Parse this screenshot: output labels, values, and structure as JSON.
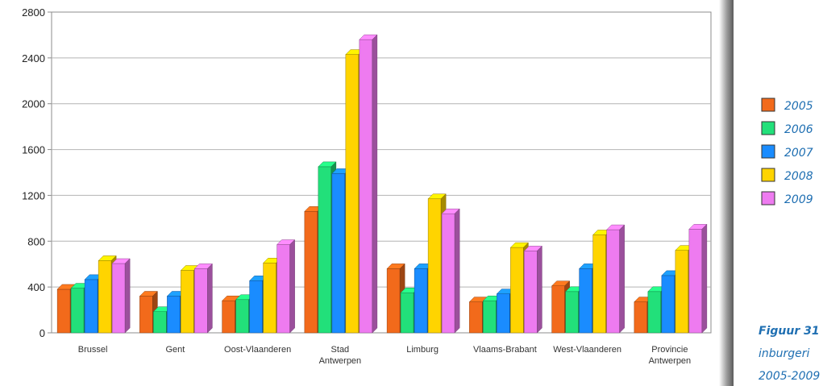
{
  "chart_data": {
    "type": "bar",
    "categories": [
      [
        "Brussel"
      ],
      [
        "Gent"
      ],
      [
        "Oost-Vlaanderen"
      ],
      [
        "Stad",
        "Antwerpen"
      ],
      [
        "Limburg"
      ],
      [
        "Vlaams-Brabant"
      ],
      [
        "West-Vlaanderen"
      ],
      [
        "Provincie",
        "Antwerpen"
      ]
    ],
    "series": [
      {
        "name": "2005",
        "color": "#f26a1b",
        "values": [
          380,
          320,
          280,
          1060,
          560,
          270,
          410,
          270
        ]
      },
      {
        "name": "2006",
        "color": "#22e07a",
        "values": [
          390,
          185,
          290,
          1450,
          350,
          280,
          360,
          360
        ]
      },
      {
        "name": "2007",
        "color": "#1a8cff",
        "values": [
          465,
          320,
          455,
          1390,
          560,
          340,
          560,
          500
        ]
      },
      {
        "name": "2008",
        "color": "#ffd400",
        "values": [
          630,
          545,
          610,
          2430,
          1170,
          745,
          855,
          720
        ]
      },
      {
        "name": "2009",
        "color": "#ee7bf0",
        "values": [
          605,
          560,
          770,
          2560,
          1040,
          715,
          900,
          905
        ]
      }
    ],
    "ylim": [
      0,
      2800
    ],
    "yticks": [
      "0",
      "400",
      "800",
      "1200",
      "1600",
      "2000",
      "2400",
      "2800"
    ],
    "grid": true,
    "legend_position": "right"
  },
  "legend": {
    "items": [
      "2005",
      "2006",
      "2007",
      "2008",
      "2009"
    ]
  },
  "caption": {
    "label": "Figuur 31",
    "line1": "inburgeri",
    "line2": "2005-2009"
  }
}
